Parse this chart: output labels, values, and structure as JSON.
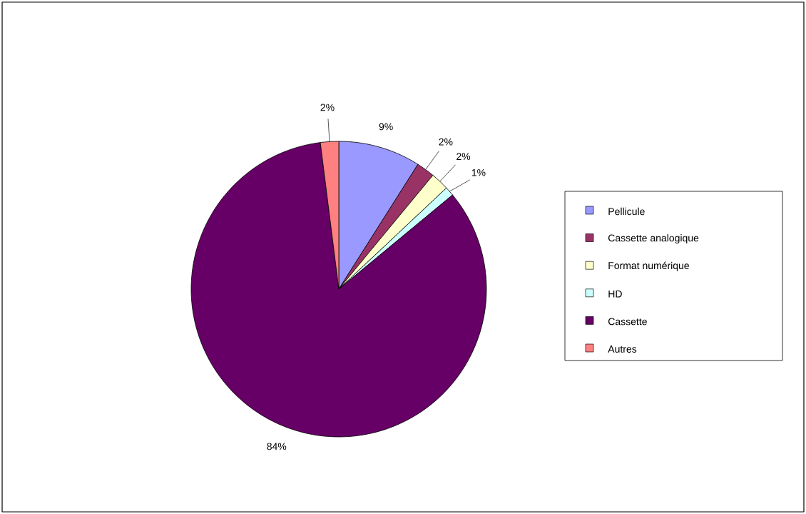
{
  "chart_data": {
    "type": "pie",
    "categories": [
      "Pellicule",
      "Cassette analogique",
      "Format numérique",
      "HD",
      "Cassette",
      "Autres"
    ],
    "values": [
      9,
      2,
      2,
      1,
      84,
      2
    ],
    "colors": [
      "#9999ff",
      "#993366",
      "#ffffcc",
      "#ccffff",
      "#660066",
      "#ff8080"
    ],
    "value_labels": [
      "9%",
      "2%",
      "2%",
      "1%",
      "84%",
      "2%"
    ],
    "legend": "right"
  }
}
